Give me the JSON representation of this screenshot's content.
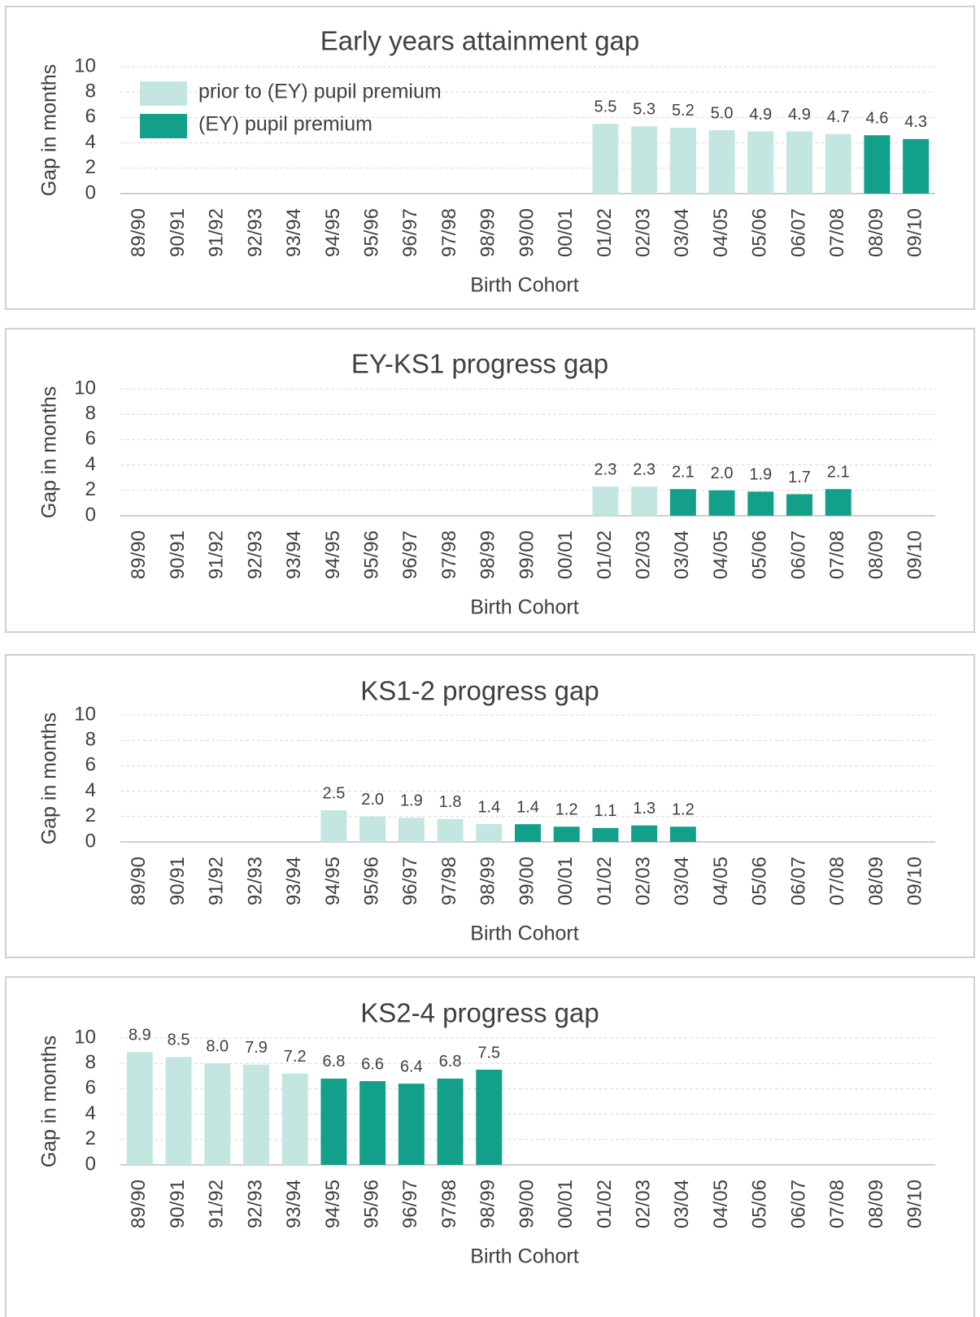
{
  "chart_data": [
    {
      "type": "bar",
      "title": "Early years attainment gap",
      "y_label": "Gap in months",
      "x_label": "Birth Cohort",
      "categories": [
        "89/90",
        "90/91",
        "91/92",
        "92/93",
        "93/94",
        "94/95",
        "95/96",
        "96/97",
        "97/98",
        "98/99",
        "99/00",
        "00/01",
        "01/02",
        "02/03",
        "03/04",
        "04/05",
        "05/06",
        "06/07",
        "07/08",
        "08/09",
        "09/10"
      ],
      "series": [
        {
          "name": "prior to (EY) pupil premium",
          "color": "#c3e6e0",
          "values": [
            null,
            null,
            null,
            null,
            null,
            null,
            null,
            null,
            null,
            null,
            null,
            null,
            5.5,
            5.3,
            5.2,
            5,
            4.9,
            4.9,
            4.7,
            null,
            null
          ],
          "value_labels": [
            null,
            null,
            null,
            null,
            null,
            null,
            null,
            null,
            null,
            null,
            null,
            null,
            "5.5",
            "5.3",
            "5.2",
            "5.0",
            "4.9",
            "4.9",
            "4.7",
            null,
            null
          ]
        },
        {
          "name": "(EY) pupil premium",
          "color": "#13a08a",
          "values": [
            null,
            null,
            null,
            null,
            null,
            null,
            null,
            null,
            null,
            null,
            null,
            null,
            null,
            null,
            null,
            null,
            null,
            null,
            null,
            4.6,
            4.3
          ],
          "value_labels": [
            null,
            null,
            null,
            null,
            null,
            null,
            null,
            null,
            null,
            null,
            null,
            null,
            null,
            null,
            null,
            null,
            null,
            null,
            null,
            "4.6",
            "4.3"
          ]
        }
      ],
      "ylim": [
        0,
        10
      ],
      "yticks": [
        0,
        2,
        4,
        6,
        8,
        10
      ],
      "grid": true,
      "legend": "top-left"
    },
    {
      "type": "bar",
      "title": "EY-KS1 progress gap",
      "y_label": "Gap in months",
      "x_label": "Birth Cohort",
      "categories": [
        "89/90",
        "90/91",
        "91/92",
        "92/93",
        "93/94",
        "94/95",
        "95/96",
        "96/97",
        "97/98",
        "98/99",
        "99/00",
        "00/01",
        "01/02",
        "02/03",
        "03/04",
        "04/05",
        "05/06",
        "06/07",
        "07/08",
        "08/09",
        "09/10"
      ],
      "series": [
        {
          "color": "#c3e6e0",
          "values": [
            null,
            null,
            null,
            null,
            null,
            null,
            null,
            null,
            null,
            null,
            null,
            null,
            2.3,
            2.3,
            null,
            null,
            null,
            null,
            null,
            null,
            null
          ]
        },
        {
          "color": "#13a08a",
          "values": [
            null,
            null,
            null,
            null,
            null,
            null,
            null,
            null,
            null,
            null,
            null,
            null,
            null,
            null,
            2.1,
            2,
            1.9,
            1.7,
            2.1,
            null,
            null
          ],
          "value_labels": [
            null,
            null,
            null,
            null,
            null,
            null,
            null,
            null,
            null,
            null,
            null,
            null,
            null,
            null,
            "2.1",
            "2.0",
            "1.9",
            "1.7",
            "2.1",
            null,
            null
          ]
        }
      ],
      "ylim": [
        0,
        10
      ],
      "yticks": [
        0,
        2,
        4,
        6,
        8,
        10
      ],
      "grid": true
    },
    {
      "type": "bar",
      "title": "KS1-2 progress gap",
      "y_label": "Gap in months",
      "x_label": "Birth Cohort",
      "categories": [
        "89/90",
        "90/91",
        "91/92",
        "92/93",
        "93/94",
        "94/95",
        "95/96",
        "96/97",
        "97/98",
        "98/99",
        "99/00",
        "00/01",
        "01/02",
        "02/03",
        "03/04",
        "04/05",
        "05/06",
        "06/07",
        "07/08",
        "08/09",
        "09/10"
      ],
      "series": [
        {
          "color": "#c3e6e0",
          "values": [
            null,
            null,
            null,
            null,
            null,
            2.5,
            2,
            1.9,
            1.8,
            1.4,
            null,
            null,
            null,
            null,
            null,
            null,
            null,
            null,
            null,
            null,
            null
          ],
          "value_labels": [
            null,
            null,
            null,
            null,
            null,
            "2.5",
            "2.0",
            "1.9",
            "1.8",
            "1.4",
            null,
            null,
            null,
            null,
            null,
            null,
            null,
            null,
            null,
            null,
            null
          ]
        },
        {
          "color": "#13a08a",
          "values": [
            null,
            null,
            null,
            null,
            null,
            null,
            null,
            null,
            null,
            null,
            1.4,
            1.2,
            1.1,
            1.3,
            1.2,
            null,
            null,
            null,
            null,
            null,
            null
          ]
        }
      ],
      "ylim": [
        0,
        10
      ],
      "yticks": [
        0,
        2,
        4,
        6,
        8,
        10
      ],
      "grid": true
    },
    {
      "type": "bar",
      "title": "KS2-4 progress gap",
      "y_label": "Gap in months",
      "x_label": "Birth Cohort",
      "categories": [
        "89/90",
        "90/91",
        "91/92",
        "92/93",
        "93/94",
        "94/95",
        "95/96",
        "96/97",
        "97/98",
        "98/99",
        "99/00",
        "00/01",
        "01/02",
        "02/03",
        "03/04",
        "04/05",
        "05/06",
        "06/07",
        "07/08",
        "08/09",
        "09/10"
      ],
      "series": [
        {
          "color": "#c3e6e0",
          "values": [
            8.9,
            8.5,
            8,
            7.9,
            7.2,
            null,
            null,
            null,
            null,
            null,
            null,
            null,
            null,
            null,
            null,
            null,
            null,
            null,
            null,
            null,
            null
          ],
          "value_labels": [
            "8.9",
            "8.5",
            "8.0",
            "7.9",
            "7.2",
            null,
            null,
            null,
            null,
            null,
            null,
            null,
            null,
            null,
            null,
            null,
            null,
            null,
            null,
            null,
            null
          ]
        },
        {
          "color": "#13a08a",
          "values": [
            null,
            null,
            null,
            null,
            null,
            6.8,
            6.6,
            6.4,
            6.8,
            7.5,
            null,
            null,
            null,
            null,
            null,
            null,
            null,
            null,
            null,
            null,
            null
          ]
        }
      ],
      "ylim": [
        0,
        10
      ],
      "yticks": [
        0,
        2,
        4,
        6,
        8,
        10
      ],
      "grid": true
    }
  ]
}
